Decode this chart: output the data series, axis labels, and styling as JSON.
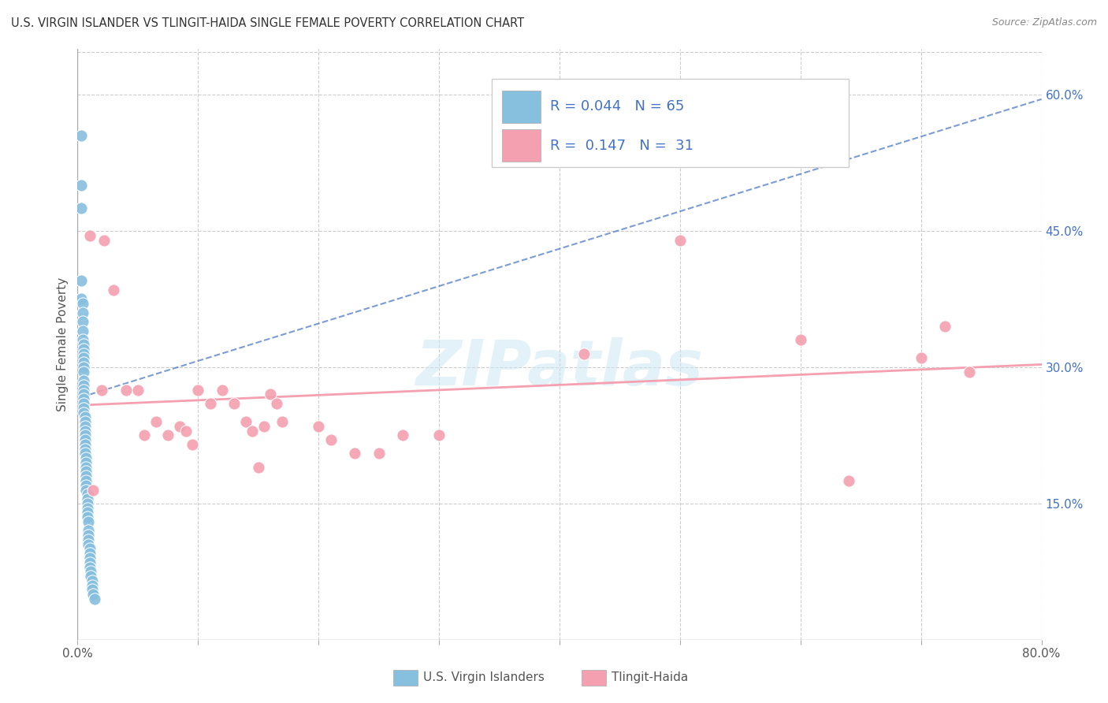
{
  "title": "U.S. VIRGIN ISLANDER VS TLINGIT-HAIDA SINGLE FEMALE POVERTY CORRELATION CHART",
  "source": "Source: ZipAtlas.com",
  "ylabel": "Single Female Poverty",
  "xlim": [
    0.0,
    0.8
  ],
  "ylim": [
    0.0,
    0.65
  ],
  "xtick_positions": [
    0.0,
    0.1,
    0.2,
    0.3,
    0.4,
    0.5,
    0.6,
    0.7,
    0.8
  ],
  "xticklabels": [
    "0.0%",
    "",
    "",
    "",
    "",
    "",
    "",
    "",
    "80.0%"
  ],
  "yticks_right": [
    0.15,
    0.3,
    0.45,
    0.6
  ],
  "ytick_labels_right": [
    "15.0%",
    "30.0%",
    "45.0%",
    "60.0%"
  ],
  "watermark": "ZIPatlas",
  "color_blue": "#87BFDF",
  "color_pink": "#F4A0B0",
  "color_blue_text": "#4472c4",
  "color_grid": "#cccccc",
  "blue_points_x": [
    0.003,
    0.003,
    0.003,
    0.003,
    0.003,
    0.004,
    0.004,
    0.004,
    0.004,
    0.004,
    0.005,
    0.005,
    0.005,
    0.005,
    0.005,
    0.005,
    0.005,
    0.005,
    0.005,
    0.005,
    0.005,
    0.005,
    0.005,
    0.005,
    0.005,
    0.006,
    0.006,
    0.006,
    0.006,
    0.006,
    0.006,
    0.006,
    0.006,
    0.006,
    0.007,
    0.007,
    0.007,
    0.007,
    0.007,
    0.007,
    0.007,
    0.007,
    0.008,
    0.008,
    0.008,
    0.008,
    0.008,
    0.008,
    0.009,
    0.009,
    0.009,
    0.009,
    0.009,
    0.01,
    0.01,
    0.01,
    0.01,
    0.01,
    0.011,
    0.011,
    0.012,
    0.012,
    0.012,
    0.013,
    0.014
  ],
  "blue_points_y": [
    0.555,
    0.5,
    0.475,
    0.395,
    0.375,
    0.37,
    0.36,
    0.35,
    0.34,
    0.33,
    0.325,
    0.32,
    0.315,
    0.31,
    0.305,
    0.3,
    0.295,
    0.285,
    0.28,
    0.275,
    0.27,
    0.265,
    0.26,
    0.255,
    0.25,
    0.245,
    0.24,
    0.235,
    0.23,
    0.225,
    0.22,
    0.215,
    0.21,
    0.205,
    0.2,
    0.195,
    0.19,
    0.185,
    0.18,
    0.175,
    0.17,
    0.165,
    0.16,
    0.155,
    0.15,
    0.145,
    0.14,
    0.135,
    0.13,
    0.12,
    0.115,
    0.11,
    0.105,
    0.1,
    0.095,
    0.09,
    0.085,
    0.08,
    0.075,
    0.07,
    0.065,
    0.06,
    0.055,
    0.05,
    0.045
  ],
  "pink_points_x": [
    0.01,
    0.013,
    0.02,
    0.022,
    0.03,
    0.04,
    0.05,
    0.055,
    0.065,
    0.075,
    0.085,
    0.09,
    0.095,
    0.1,
    0.11,
    0.12,
    0.13,
    0.14,
    0.145,
    0.15,
    0.155,
    0.16,
    0.165,
    0.17,
    0.2,
    0.21,
    0.23,
    0.25,
    0.27,
    0.3,
    0.42
  ],
  "pink_points_y": [
    0.445,
    0.165,
    0.275,
    0.44,
    0.385,
    0.275,
    0.275,
    0.225,
    0.24,
    0.225,
    0.235,
    0.23,
    0.215,
    0.275,
    0.26,
    0.275,
    0.26,
    0.24,
    0.23,
    0.19,
    0.235,
    0.27,
    0.26,
    0.24,
    0.235,
    0.22,
    0.205,
    0.205,
    0.225,
    0.225,
    0.315
  ],
  "pink_points_x2": [
    0.5,
    0.6,
    0.64,
    0.7,
    0.72,
    0.74
  ],
  "pink_points_y2": [
    0.44,
    0.33,
    0.175,
    0.31,
    0.345,
    0.295
  ],
  "blue_trend_x": [
    0.003,
    0.8
  ],
  "blue_trend_y": [
    0.267,
    0.595
  ],
  "pink_trend_x": [
    0.0,
    0.8
  ],
  "pink_trend_y": [
    0.258,
    0.303
  ]
}
